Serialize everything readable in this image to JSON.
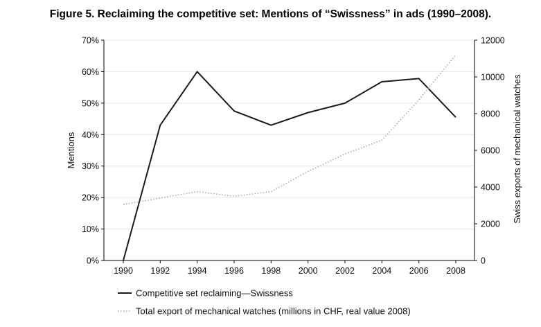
{
  "chart_data": {
    "type": "line",
    "title": "Figure 5.  Reclaiming the competitive set: Mentions of “Swissness” in ads (1990–2008).",
    "x": [
      1990,
      1992,
      1994,
      1996,
      1998,
      2000,
      2002,
      2004,
      2006,
      2008
    ],
    "x_ticks": [
      "1990",
      "1992",
      "1994",
      "1996",
      "1998",
      "2000",
      "2002",
      "2004",
      "2006",
      "2008"
    ],
    "y_left": {
      "label": "Mentions",
      "lim": [
        0,
        70
      ],
      "ticks": [
        0,
        10,
        20,
        30,
        40,
        50,
        60,
        70
      ],
      "tick_labels": [
        "0%",
        "10%",
        "20%",
        "30%",
        "40%",
        "50%",
        "60%",
        "70%"
      ]
    },
    "y_right": {
      "label": "Swiss exports of mechanical watches",
      "lim": [
        0,
        12000
      ],
      "ticks": [
        0,
        2000,
        4000,
        6000,
        8000,
        10000,
        12000
      ],
      "tick_labels": [
        "0",
        "2000",
        "4000",
        "6000",
        "8000",
        "10000",
        "12000"
      ]
    },
    "grid": "horizontal",
    "legend_position": "bottom-left",
    "series": [
      {
        "name": "Competitive set reclaiming—Swissness",
        "axis": "left",
        "style": "solid",
        "color": "#1a1a1a",
        "values": [
          0,
          43,
          60,
          47.5,
          43,
          47,
          50,
          56.8,
          57.8,
          45.5
        ]
      },
      {
        "name": "Total export of mechanical watches (millions in CHF, real value 2008)",
        "axis": "right",
        "style": "dotted",
        "color": "#aaaaaa",
        "values": [
          3050,
          3400,
          3750,
          3500,
          3750,
          4850,
          5800,
          6550,
          8750,
          11200
        ]
      }
    ]
  }
}
